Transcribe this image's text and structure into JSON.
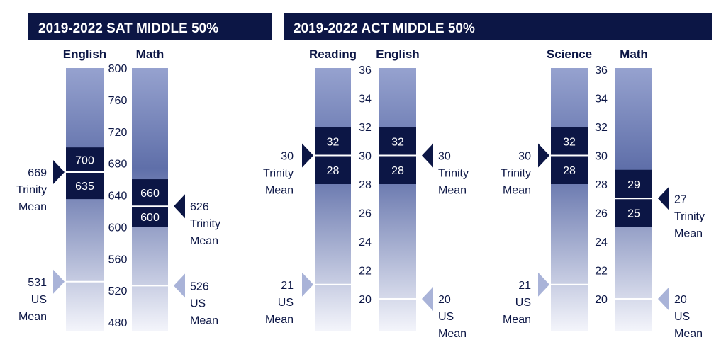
{
  "colors": {
    "navy": "#0c1645",
    "gradient_top": "#8d9ac9",
    "gradient_mid": "#5d6da8",
    "gradient_bottom": "#f4f5fb",
    "us_marker": "#a9b3d8"
  },
  "headers": {
    "sat": "2019-2022 SAT MIDDLE 50%",
    "act": "2019-2022 ACT MIDDLE 50%"
  },
  "chart_data": [
    {
      "type": "range",
      "title": "2019-2022 SAT MIDDLE 50%",
      "ylim": [
        480,
        800
      ],
      "ticks": [
        "800",
        "760",
        "720",
        "680",
        "640",
        "600",
        "560",
        "520",
        "480"
      ],
      "series": [
        {
          "name": "English",
          "low": 635,
          "high": 700,
          "trinity_mean": 669,
          "us_mean": 531,
          "low_label": "635",
          "high_label": "700",
          "trinity_label": [
            "669",
            "Trinity",
            "Mean"
          ],
          "us_label": [
            "531",
            "US",
            "Mean"
          ]
        },
        {
          "name": "Math",
          "low": 600,
          "high": 660,
          "trinity_mean": 626,
          "us_mean": 526,
          "low_label": "600",
          "high_label": "660",
          "trinity_label": [
            "626",
            "Trinity",
            "Mean"
          ],
          "us_label": [
            "526",
            "US",
            "Mean"
          ]
        }
      ]
    },
    {
      "type": "range",
      "title": "2019-2022 ACT MIDDLE 50%",
      "ylim": [
        20,
        36
      ],
      "ticks_left": [
        "36",
        "34",
        "32",
        "30",
        "28",
        "26",
        "24",
        "22",
        "20"
      ],
      "ticks_right": [
        "36",
        "34",
        "32",
        "30",
        "28",
        "26",
        "24",
        "22",
        "20"
      ],
      "series": [
        {
          "name": "Reading",
          "low": 28,
          "high": 32,
          "trinity_mean": 30,
          "us_mean": 21,
          "low_label": "28",
          "high_label": "32",
          "trinity_label": [
            "30",
            "Trinity",
            "Mean"
          ],
          "us_label": [
            "21",
            "US",
            "Mean"
          ]
        },
        {
          "name": "English",
          "low": 28,
          "high": 32,
          "trinity_mean": 30,
          "us_mean": 20,
          "low_label": "28",
          "high_label": "32",
          "trinity_label": [
            "30",
            "Trinity",
            "Mean"
          ],
          "us_label": [
            "20",
            "US",
            "Mean"
          ]
        },
        {
          "name": "Science",
          "low": 28,
          "high": 32,
          "trinity_mean": 30,
          "us_mean": 21,
          "low_label": "28",
          "high_label": "32",
          "trinity_label": [
            "30",
            "Trinity",
            "Mean"
          ],
          "us_label": [
            "21",
            "US",
            "Mean"
          ]
        },
        {
          "name": "Math",
          "low": 25,
          "high": 29,
          "trinity_mean": 27,
          "us_mean": 20,
          "low_label": "25",
          "high_label": "29",
          "trinity_label": [
            "27",
            "Trinity",
            "Mean"
          ],
          "us_label": [
            "20",
            "US",
            "Mean"
          ]
        }
      ]
    }
  ]
}
